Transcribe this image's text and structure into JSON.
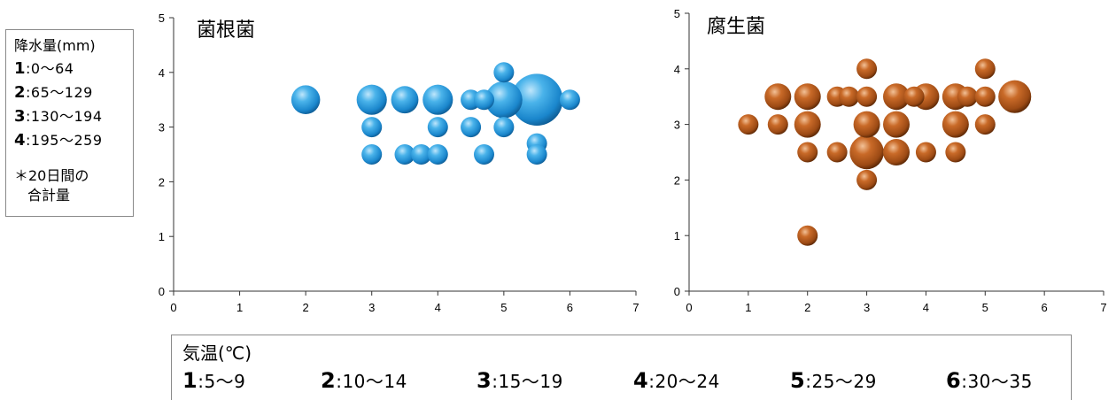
{
  "rain_legend": {
    "title": "降水量(mm)",
    "items": [
      {
        "code": "1",
        "range": ":0〜64"
      },
      {
        "code": "2",
        "range": ":65〜129"
      },
      {
        "code": "3",
        "range": ":130〜194"
      },
      {
        "code": "4",
        "range": ":195〜259"
      }
    ],
    "note_line1": "＊20日間の",
    "note_line2": "合計量"
  },
  "temp_legend": {
    "title": "気温(℃)",
    "items": [
      {
        "code": "1",
        "range": ":5〜9"
      },
      {
        "code": "2",
        "range": ":10〜14"
      },
      {
        "code": "3",
        "range": ":15〜19"
      },
      {
        "code": "4",
        "range": ":20〜24"
      },
      {
        "code": "5",
        "range": ":25〜29"
      },
      {
        "code": "6",
        "range": ":30〜35"
      }
    ]
  },
  "chart_data": [
    {
      "type": "bubble",
      "title": "菌根菌",
      "xlim": [
        0,
        7
      ],
      "ylim": [
        0,
        5
      ],
      "xticks": [
        "0",
        "1",
        "2",
        "3",
        "4",
        "5",
        "6",
        "7"
      ],
      "yticks": [
        "0",
        "1",
        "2",
        "3",
        "4",
        "5"
      ],
      "grid": false,
      "color": "#2a9ad8",
      "points": [
        {
          "x": 2,
          "y": 3.5,
          "size": 2
        },
        {
          "x": 3,
          "y": 3.5,
          "size": 2.2
        },
        {
          "x": 3.5,
          "y": 3.5,
          "size": 1.8
        },
        {
          "x": 4,
          "y": 3.5,
          "size": 2.2
        },
        {
          "x": 4.5,
          "y": 3.5,
          "size": 1
        },
        {
          "x": 4.7,
          "y": 3.5,
          "size": 1
        },
        {
          "x": 5,
          "y": 3.5,
          "size": 3.3
        },
        {
          "x": 5.5,
          "y": 3.5,
          "size": 6.5
        },
        {
          "x": 6,
          "y": 3.5,
          "size": 1
        },
        {
          "x": 5,
          "y": 4,
          "size": 1
        },
        {
          "x": 3,
          "y": 3,
          "size": 1
        },
        {
          "x": 4,
          "y": 3,
          "size": 1
        },
        {
          "x": 4.5,
          "y": 3,
          "size": 1
        },
        {
          "x": 5,
          "y": 3,
          "size": 1
        },
        {
          "x": 5.5,
          "y": 2.7,
          "size": 1
        },
        {
          "x": 3,
          "y": 2.5,
          "size": 1
        },
        {
          "x": 3.5,
          "y": 2.5,
          "size": 1
        },
        {
          "x": 3.75,
          "y": 2.5,
          "size": 1
        },
        {
          "x": 4,
          "y": 2.5,
          "size": 1
        },
        {
          "x": 4.7,
          "y": 2.5,
          "size": 1
        },
        {
          "x": 5.5,
          "y": 2.5,
          "size": 1
        }
      ]
    },
    {
      "type": "bubble",
      "title": "腐生菌",
      "xlim": [
        0,
        7
      ],
      "ylim": [
        0,
        5
      ],
      "xticks": [
        "0",
        "1",
        "2",
        "3",
        "4",
        "5",
        "6",
        "7"
      ],
      "yticks": [
        "0",
        "1",
        "2",
        "3",
        "4",
        "5"
      ],
      "grid": false,
      "color": "#b5541a",
      "points": [
        {
          "x": 1,
          "y": 3,
          "size": 1
        },
        {
          "x": 1.5,
          "y": 3,
          "size": 1
        },
        {
          "x": 2,
          "y": 3,
          "size": 1.7
        },
        {
          "x": 3,
          "y": 3,
          "size": 1.7
        },
        {
          "x": 3.5,
          "y": 3,
          "size": 1.7
        },
        {
          "x": 4.5,
          "y": 3,
          "size": 1.7
        },
        {
          "x": 5,
          "y": 3,
          "size": 1
        },
        {
          "x": 1.5,
          "y": 3.5,
          "size": 1.7
        },
        {
          "x": 2,
          "y": 3.5,
          "size": 1.7
        },
        {
          "x": 2.5,
          "y": 3.5,
          "size": 1
        },
        {
          "x": 2.7,
          "y": 3.5,
          "size": 1
        },
        {
          "x": 3,
          "y": 3.5,
          "size": 1
        },
        {
          "x": 3.5,
          "y": 3.5,
          "size": 1.7
        },
        {
          "x": 3.8,
          "y": 3.5,
          "size": 1
        },
        {
          "x": 4,
          "y": 3.5,
          "size": 1.7
        },
        {
          "x": 4.5,
          "y": 3.5,
          "size": 1.7
        },
        {
          "x": 4.7,
          "y": 3.5,
          "size": 1
        },
        {
          "x": 5,
          "y": 3.5,
          "size": 1
        },
        {
          "x": 5.5,
          "y": 3.5,
          "size": 2.6
        },
        {
          "x": 3,
          "y": 4,
          "size": 1
        },
        {
          "x": 5,
          "y": 4,
          "size": 1
        },
        {
          "x": 2,
          "y": 2.5,
          "size": 1
        },
        {
          "x": 2.5,
          "y": 2.5,
          "size": 1
        },
        {
          "x": 3,
          "y": 2.5,
          "size": 2.8
        },
        {
          "x": 3.5,
          "y": 2.5,
          "size": 1.7
        },
        {
          "x": 4,
          "y": 2.5,
          "size": 1
        },
        {
          "x": 4.5,
          "y": 2.5,
          "size": 1
        },
        {
          "x": 3,
          "y": 2,
          "size": 1
        },
        {
          "x": 2,
          "y": 1,
          "size": 1
        }
      ]
    }
  ]
}
